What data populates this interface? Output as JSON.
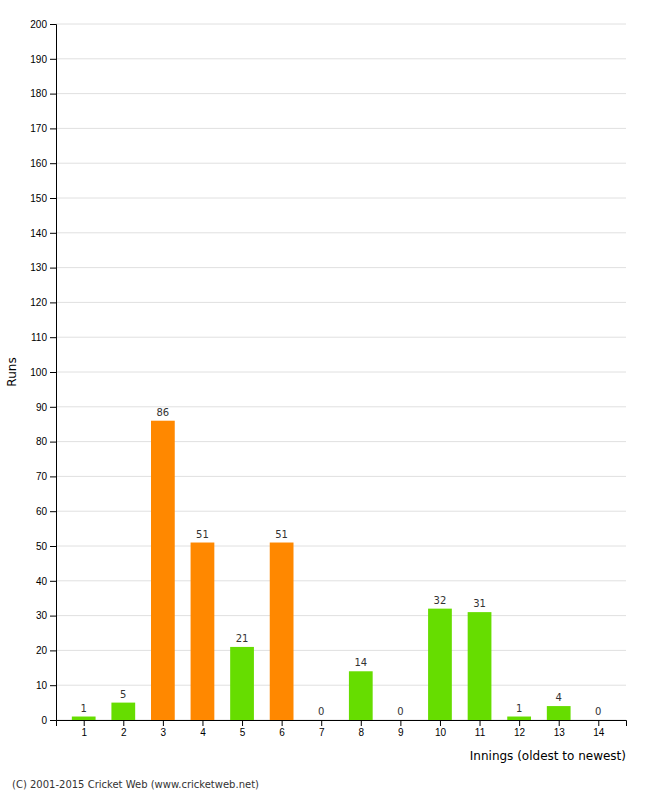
{
  "chart_data": {
    "type": "bar",
    "x": [
      1,
      2,
      3,
      4,
      5,
      6,
      7,
      8,
      9,
      10,
      11,
      12,
      13,
      14
    ],
    "values": [
      1,
      5,
      86,
      51,
      21,
      51,
      0,
      14,
      0,
      32,
      31,
      1,
      4,
      0
    ],
    "colors": [
      "#66dd00",
      "#66dd00",
      "#ff8800",
      "#ff8800",
      "#66dd00",
      "#ff8800",
      "#66dd00",
      "#66dd00",
      "#66dd00",
      "#66dd00",
      "#66dd00",
      "#66dd00",
      "#66dd00",
      "#66dd00"
    ],
    "xlabel": "Innings (oldest to newest)",
    "ylabel": "Runs",
    "xlim": [
      0.3,
      14.7
    ],
    "xticks": [
      1,
      2,
      3,
      4,
      5,
      6,
      7,
      8,
      9,
      10,
      11,
      12,
      13,
      14
    ],
    "ylim": [
      0,
      200
    ],
    "yticks": [
      0,
      10,
      20,
      30,
      40,
      50,
      60,
      70,
      80,
      90,
      100,
      110,
      120,
      130,
      140,
      150,
      160,
      170,
      180,
      190,
      200
    ],
    "grid": true,
    "data_labels": true,
    "annotations": [
      "(C) 2001-2015 Cricket Web (www.cricketweb.net)"
    ]
  }
}
